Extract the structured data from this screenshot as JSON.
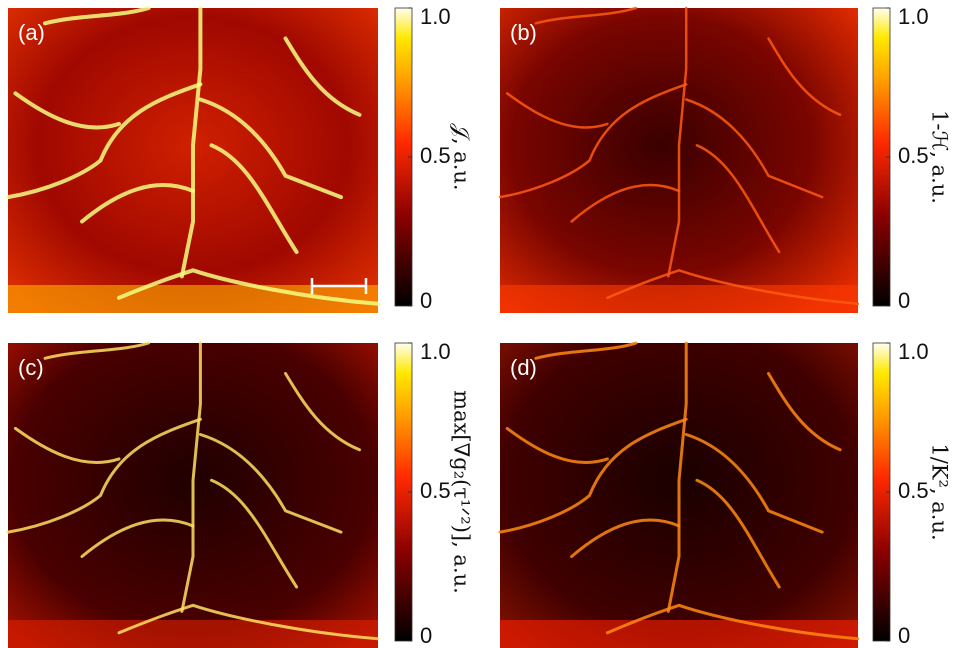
{
  "panels": [
    {
      "label": "(a)",
      "colorbar": {
        "label": "𝒥, a.u.",
        "lim": [
          0,
          1
        ],
        "ticks": [
          {
            "value": 1,
            "label": "1.0"
          },
          0.5,
          0
        ]
      }
    },
    {
      "label": "(b)",
      "colorbar": {
        "label": "1-ℋ, a.u.",
        "lim": [
          0,
          1
        ],
        "ticks": [
          {
            "value": 1,
            "label": "1.0"
          },
          0.5,
          0
        ]
      }
    },
    {
      "label": "(c)",
      "colorbar": {
        "label": "max[∇g₂(τ¹ᐟ²)], a.u.",
        "lim": [
          0,
          1
        ],
        "ticks": [
          {
            "value": 1,
            "label": "1.0"
          },
          0.5,
          0
        ]
      }
    },
    {
      "label": "(d)",
      "colorbar": {
        "label": "1/K², a.u.",
        "lim": [
          0,
          1
        ],
        "ticks": [
          {
            "value": 1,
            "label": "1.0"
          },
          0.5,
          0
        ]
      }
    }
  ]
}
